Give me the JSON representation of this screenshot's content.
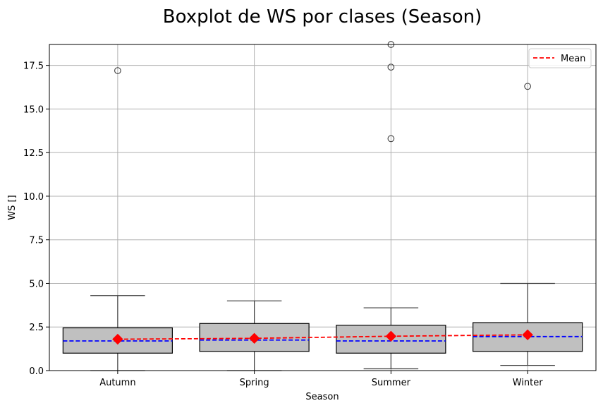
{
  "chart_data": {
    "type": "boxplot",
    "title": "Boxplot de WS por clases (Season)",
    "xlabel": "Season",
    "ylabel": "WS []",
    "ylim": [
      0,
      18.7
    ],
    "yticks": [
      "0.0",
      "2.5",
      "5.0",
      "7.5",
      "10.0",
      "12.5",
      "15.0",
      "17.5"
    ],
    "grid": true,
    "legend": {
      "position": "top-right",
      "entries": [
        {
          "label": "Mean",
          "style": "dashed",
          "color": "#ff0000"
        }
      ]
    },
    "colors": {
      "box_fill": "#c0c0c0",
      "median": "#0000ff",
      "mean": "#ff0000",
      "grid": "#b0b0b0"
    },
    "categories": [
      "Autumn",
      "Spring",
      "Summer",
      "Winter"
    ],
    "boxes": [
      {
        "name": "Autumn",
        "whisker_low": 0.0,
        "q1": 1.0,
        "median": 1.7,
        "q3": 2.45,
        "whisker_high": 4.3,
        "mean": 1.8,
        "outliers": [
          17.2
        ]
      },
      {
        "name": "Spring",
        "whisker_low": 0.0,
        "q1": 1.1,
        "median": 1.75,
        "q3": 2.7,
        "whisker_high": 4.0,
        "mean": 1.85,
        "outliers": []
      },
      {
        "name": "Summer",
        "whisker_low": 0.1,
        "q1": 1.0,
        "median": 1.7,
        "q3": 2.6,
        "whisker_high": 3.6,
        "mean": 1.97,
        "outliers": [
          13.3,
          17.4,
          18.7
        ]
      },
      {
        "name": "Winter",
        "whisker_low": 0.3,
        "q1": 1.1,
        "median": 1.95,
        "q3": 2.75,
        "whisker_high": 5.0,
        "mean": 2.05,
        "outliers": [
          16.3
        ]
      }
    ]
  }
}
